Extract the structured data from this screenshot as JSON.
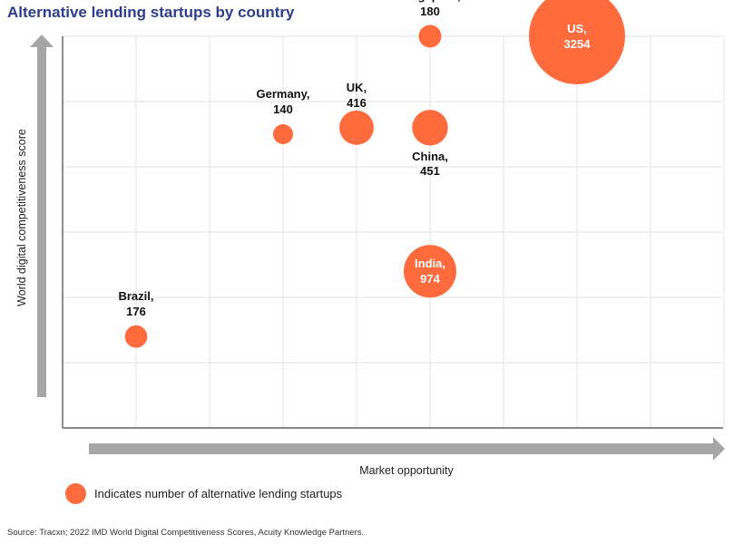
{
  "title": "Alternative lending startups by country",
  "chart_data": {
    "type": "scatter",
    "xlabel": "Market opportunity",
    "ylabel": "World digital competitiveness score",
    "x_tick_labels": [],
    "y_tick_labels": [],
    "grid": true,
    "point_color": "#ff6b3d",
    "points": [
      {
        "name": "Brazil,",
        "label_value": "176",
        "size": 176,
        "x": 1,
        "y": 0.4
      },
      {
        "name": "Germany,",
        "label_value": "140",
        "size": 140,
        "x": 3,
        "y": 3.5
      },
      {
        "name": "UK,",
        "label_value": "416",
        "size": 416,
        "x": 4,
        "y": 3.6
      },
      {
        "name": "China,",
        "label_value": "451",
        "size": 451,
        "x": 5,
        "y": 3.6
      },
      {
        "name": "Singapore,",
        "label_value": "180",
        "size": 180,
        "x": 5,
        "y": 5
      },
      {
        "name": "India,",
        "label_value": "974",
        "size": 974,
        "x": 5,
        "y": 1.4
      },
      {
        "name": "US,",
        "label_value": "3254",
        "size": 3254,
        "x": 7,
        "y": 5
      }
    ]
  },
  "legend": {
    "text": "Indicates number of alternative lending startups"
  },
  "source": "Source: Tracxn; 2022 IMD World Digital Competitiveness Scores, Acuity Knowledge Partners."
}
